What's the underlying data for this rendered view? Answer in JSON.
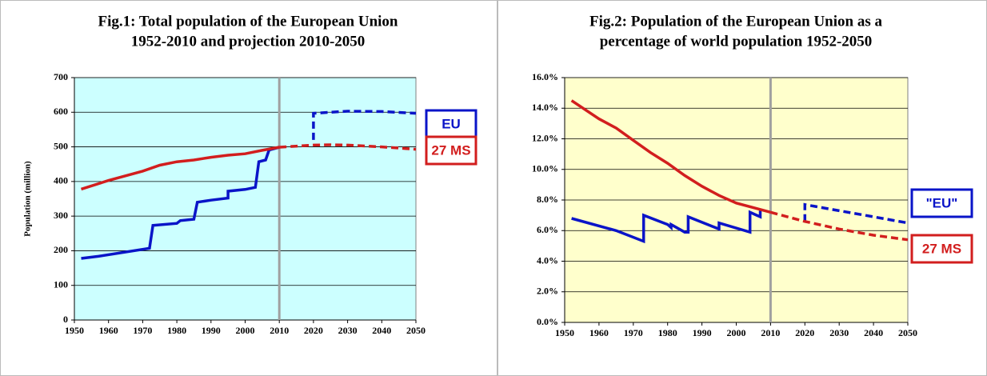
{
  "chart_data": [
    {
      "type": "line",
      "title": [
        "Fig.1: Total population of the European Union",
        "1952-2010 and projection 2010-2050"
      ],
      "ylabel": "Population (million)",
      "background": "#ccffff",
      "xlim": [
        1950,
        2050
      ],
      "xticks": [
        1950,
        1960,
        1970,
        1980,
        1990,
        2000,
        2010,
        2020,
        2030,
        2040,
        2050
      ],
      "ylim": [
        0,
        700
      ],
      "yticks": [
        0,
        100,
        200,
        300,
        400,
        500,
        600,
        700
      ],
      "grid": true,
      "vline": 2010,
      "series": [
        {
          "name": "EU",
          "color": "#0a14c8",
          "dashed": false,
          "x": [
            1952,
            1957,
            1972,
            1973,
            1980,
            1981,
            1985,
            1986,
            1990,
            1995,
            1995,
            2000,
            2003,
            2004,
            2006,
            2007,
            2010
          ],
          "values": [
            178,
            184,
            207,
            273,
            279,
            287,
            291,
            340,
            346,
            352,
            372,
            377,
            383,
            457,
            462,
            491,
            499
          ]
        },
        {
          "color": "#0a14c8",
          "dashed": true,
          "x": [
            2020,
            2020,
            2030,
            2040,
            2050
          ],
          "values": [
            520,
            597,
            603,
            602,
            597
          ]
        },
        {
          "name": "27 MS",
          "color": "#d21e1e",
          "dashed": false,
          "x": [
            1952,
            1960,
            1970,
            1975,
            1980,
            1985,
            1990,
            1995,
            2000,
            2005,
            2010
          ],
          "values": [
            378,
            403,
            430,
            447,
            457,
            462,
            470,
            476,
            480,
            490,
            499
          ]
        },
        {
          "color": "#d21e1e",
          "dashed": true,
          "x": [
            2010,
            2020,
            2025,
            2030,
            2040,
            2050
          ],
          "values": [
            499,
            505,
            506,
            505,
            500,
            493
          ]
        }
      ]
    },
    {
      "type": "line",
      "title": [
        "Fig.2: Population of the European Union as a",
        "percentage of world population 1952-2050"
      ],
      "background": "#ffffcc",
      "xlim": [
        1950,
        2050
      ],
      "xticks": [
        1950,
        1960,
        1970,
        1980,
        1990,
        2000,
        2010,
        2020,
        2030,
        2040,
        2050
      ],
      "ylim": [
        0,
        16
      ],
      "yticks": [
        {
          "value": 0,
          "label": "0.0%"
        },
        {
          "value": 2,
          "label": "2.0%"
        },
        {
          "value": 4,
          "label": "4.0%"
        },
        {
          "value": 6,
          "label": "6.0%"
        },
        {
          "value": 8,
          "label": "8.0%"
        },
        {
          "value": 10,
          "label": "10.0%"
        },
        {
          "value": 12,
          "label": "12.0%"
        },
        {
          "value": 14,
          "label": "14.0%"
        },
        {
          "value": 16,
          "label": "16.0%"
        }
      ],
      "grid": true,
      "vline": 2010,
      "series": [
        {
          "name": "\"EU\"",
          "color": "#0a14c8",
          "dashed": false,
          "x": [
            1952,
            1965,
            1973,
            1973,
            1980,
            1981,
            1981,
            1985,
            1986,
            1986,
            1995,
            1995,
            2004,
            2004,
            2006,
            2007,
            2007
          ],
          "values": [
            6.8,
            6.0,
            5.3,
            7.0,
            6.4,
            6.2,
            6.4,
            5.9,
            5.9,
            6.9,
            6.1,
            6.5,
            5.9,
            7.2,
            7.0,
            6.9,
            7.3
          ]
        },
        {
          "color": "#0a14c8",
          "dashed": true,
          "x": [
            2020,
            2020,
            2030,
            2040,
            2050
          ],
          "values": [
            6.6,
            7.7,
            7.3,
            6.9,
            6.5
          ]
        },
        {
          "name": "27 MS",
          "color": "#d21e1e",
          "dashed": false,
          "x": [
            1952,
            1960,
            1965,
            1970,
            1975,
            1980,
            1985,
            1990,
            1995,
            2000,
            2005,
            2010
          ],
          "values": [
            14.5,
            13.3,
            12.7,
            11.9,
            11.1,
            10.4,
            9.6,
            8.9,
            8.3,
            7.8,
            7.5,
            7.2
          ]
        },
        {
          "color": "#d21e1e",
          "dashed": true,
          "x": [
            2010,
            2020,
            2030,
            2040,
            2050
          ],
          "values": [
            7.2,
            6.6,
            6.1,
            5.7,
            5.4
          ]
        }
      ]
    }
  ]
}
